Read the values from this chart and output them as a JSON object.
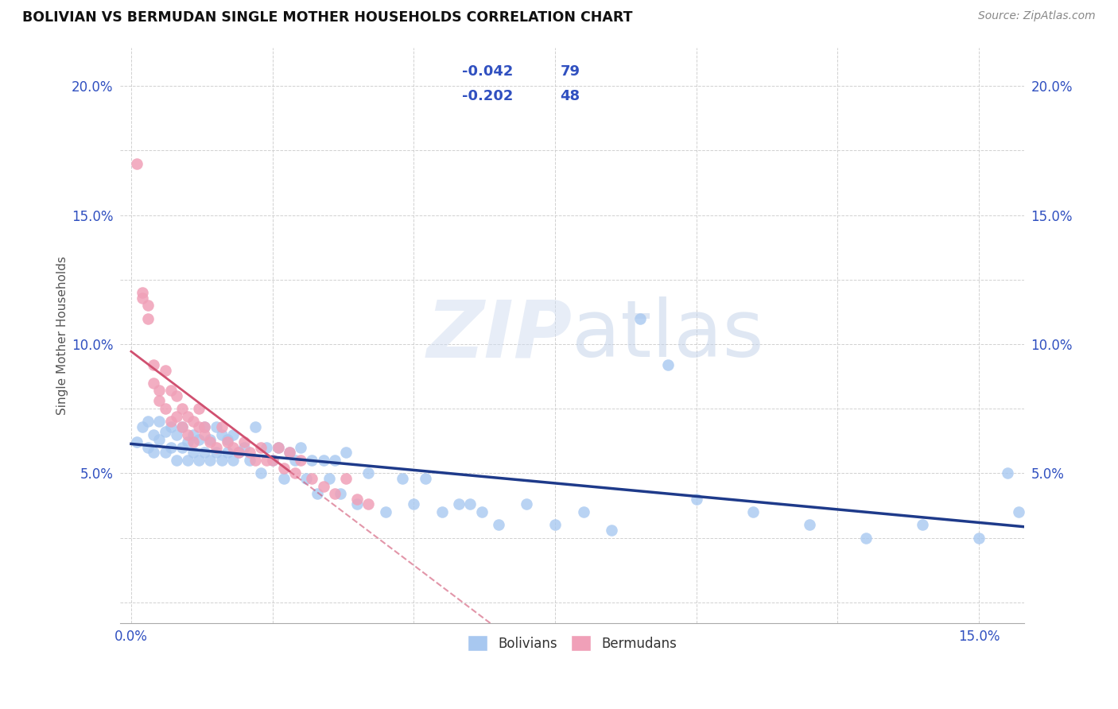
{
  "title": "BOLIVIAN VS BERMUDAN SINGLE MOTHER HOUSEHOLDS CORRELATION CHART",
  "source": "Source: ZipAtlas.com",
  "xlim": [
    -0.002,
    0.158
  ],
  "ylim": [
    -0.008,
    0.215
  ],
  "xtick_vals": [
    0.0,
    0.025,
    0.05,
    0.075,
    0.1,
    0.125,
    0.15
  ],
  "ytick_vals": [
    0.0,
    0.025,
    0.05,
    0.075,
    0.1,
    0.125,
    0.15,
    0.175,
    0.2
  ],
  "xlabel_labels": [
    "0.0%",
    "",
    "",
    "",
    "",
    "",
    "15.0%"
  ],
  "ylabel_labels_left": [
    "",
    "",
    "5.0%",
    "",
    "10.0%",
    "",
    "15.0%",
    "",
    "20.0%"
  ],
  "ylabel_labels_right": [
    "",
    "",
    "5.0%",
    "",
    "10.0%",
    "",
    "15.0%",
    "",
    "20.0%"
  ],
  "blue_R": "-0.042",
  "blue_N": "79",
  "pink_R": "-0.202",
  "pink_N": "48",
  "blue_color": "#A8C8F0",
  "pink_color": "#F0A0B8",
  "blue_line_color": "#1E3A8A",
  "pink_line_color": "#D05070",
  "text_color": "#3050C0",
  "legend_label_blue": "Bolivians",
  "legend_label_pink": "Bermudans",
  "blue_scatter_x": [
    0.001,
    0.002,
    0.003,
    0.003,
    0.004,
    0.004,
    0.005,
    0.005,
    0.006,
    0.006,
    0.007,
    0.007,
    0.008,
    0.008,
    0.009,
    0.009,
    0.01,
    0.01,
    0.011,
    0.011,
    0.012,
    0.012,
    0.013,
    0.013,
    0.014,
    0.014,
    0.015,
    0.015,
    0.016,
    0.016,
    0.017,
    0.017,
    0.018,
    0.018,
    0.019,
    0.02,
    0.021,
    0.022,
    0.023,
    0.024,
    0.025,
    0.026,
    0.027,
    0.028,
    0.029,
    0.03,
    0.031,
    0.032,
    0.033,
    0.034,
    0.035,
    0.036,
    0.037,
    0.038,
    0.04,
    0.042,
    0.045,
    0.048,
    0.05,
    0.052,
    0.055,
    0.058,
    0.06,
    0.062,
    0.065,
    0.07,
    0.075,
    0.08,
    0.085,
    0.09,
    0.095,
    0.1,
    0.11,
    0.12,
    0.13,
    0.14,
    0.15,
    0.155,
    0.157
  ],
  "blue_scatter_y": [
    0.062,
    0.068,
    0.06,
    0.07,
    0.058,
    0.065,
    0.063,
    0.07,
    0.058,
    0.066,
    0.06,
    0.068,
    0.055,
    0.065,
    0.06,
    0.068,
    0.055,
    0.062,
    0.058,
    0.065,
    0.055,
    0.063,
    0.058,
    0.068,
    0.055,
    0.063,
    0.058,
    0.068,
    0.055,
    0.065,
    0.058,
    0.063,
    0.055,
    0.065,
    0.058,
    0.06,
    0.055,
    0.068,
    0.05,
    0.06,
    0.055,
    0.06,
    0.048,
    0.058,
    0.055,
    0.06,
    0.048,
    0.055,
    0.042,
    0.055,
    0.048,
    0.055,
    0.042,
    0.058,
    0.038,
    0.05,
    0.035,
    0.048,
    0.038,
    0.048,
    0.035,
    0.038,
    0.038,
    0.035,
    0.03,
    0.038,
    0.03,
    0.035,
    0.028,
    0.11,
    0.092,
    0.04,
    0.035,
    0.03,
    0.025,
    0.03,
    0.025,
    0.05,
    0.035
  ],
  "pink_scatter_x": [
    0.001,
    0.002,
    0.002,
    0.003,
    0.003,
    0.004,
    0.004,
    0.005,
    0.005,
    0.006,
    0.006,
    0.007,
    0.007,
    0.008,
    0.008,
    0.009,
    0.009,
    0.01,
    0.01,
    0.011,
    0.011,
    0.012,
    0.012,
    0.013,
    0.013,
    0.014,
    0.015,
    0.016,
    0.017,
    0.018,
    0.019,
    0.02,
    0.021,
    0.022,
    0.023,
    0.024,
    0.025,
    0.026,
    0.027,
    0.028,
    0.029,
    0.03,
    0.032,
    0.034,
    0.036,
    0.038,
    0.04,
    0.042
  ],
  "pink_scatter_y": [
    0.17,
    0.12,
    0.118,
    0.11,
    0.115,
    0.085,
    0.092,
    0.078,
    0.082,
    0.075,
    0.09,
    0.07,
    0.082,
    0.072,
    0.08,
    0.068,
    0.075,
    0.065,
    0.072,
    0.062,
    0.07,
    0.068,
    0.075,
    0.065,
    0.068,
    0.062,
    0.06,
    0.068,
    0.062,
    0.06,
    0.058,
    0.062,
    0.058,
    0.055,
    0.06,
    0.055,
    0.055,
    0.06,
    0.052,
    0.058,
    0.05,
    0.055,
    0.048,
    0.045,
    0.042,
    0.048,
    0.04,
    0.038
  ],
  "pink_line_x_solid_end": 0.028,
  "pink_line_x_dash_end": 0.085
}
